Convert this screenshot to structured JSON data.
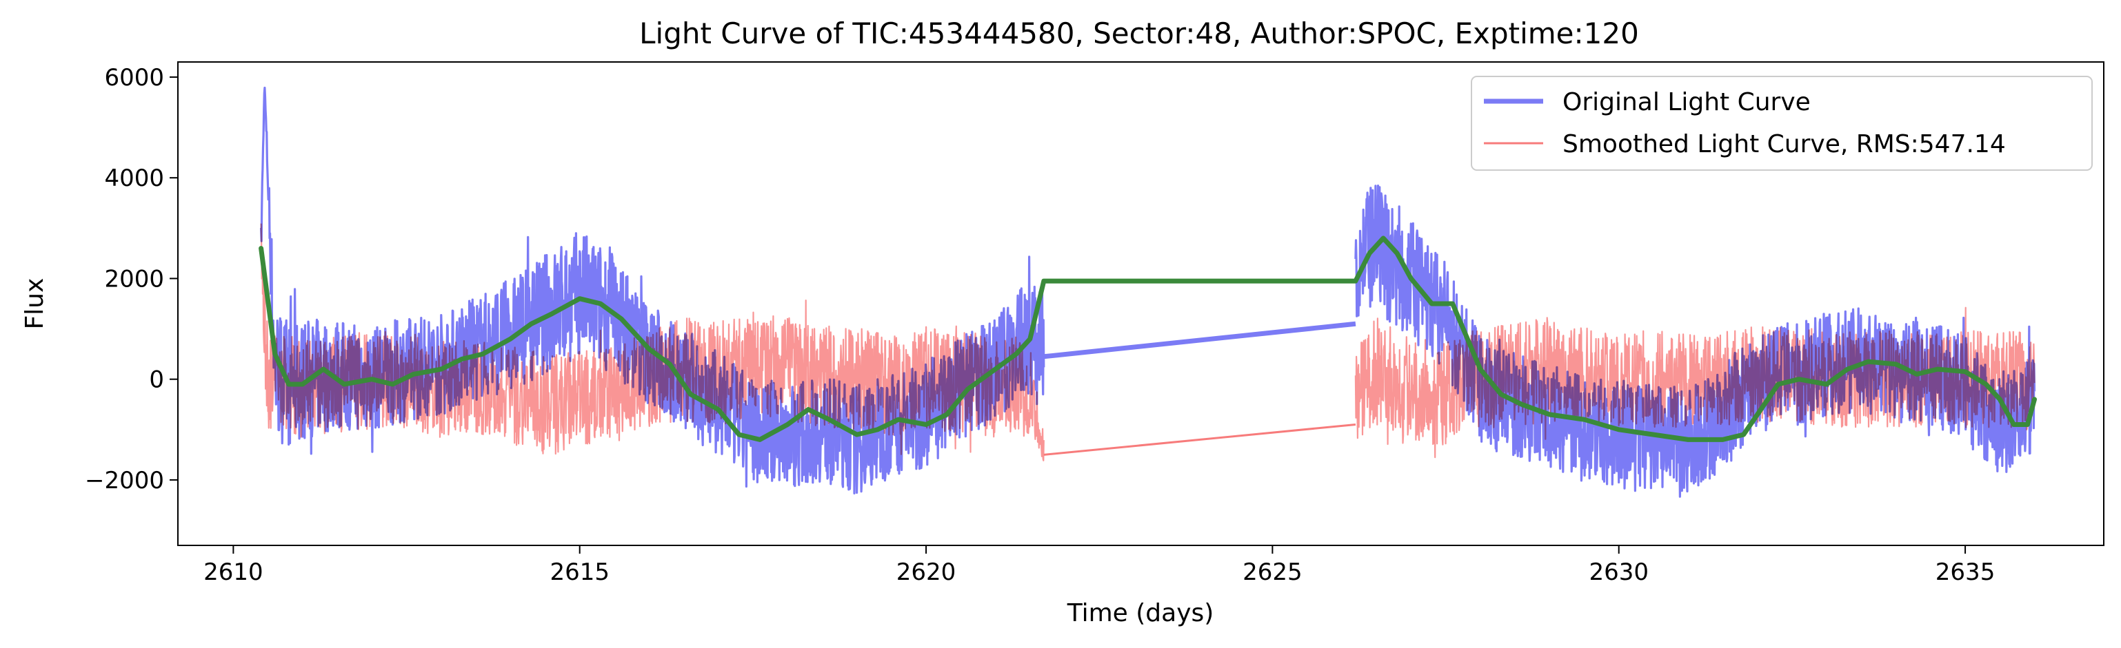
{
  "chart_data": {
    "type": "line",
    "title": "Light Curve of TIC:453444580, Sector:48, Author:SPOC, Exptime:120",
    "xlabel": "Time (days)",
    "ylabel": "Flux",
    "xlim": [
      2609.2,
      2637.0
    ],
    "ylim": [
      -3300,
      6300
    ],
    "xticks": [
      2610,
      2615,
      2620,
      2625,
      2630,
      2635
    ],
    "yticks": [
      -2000,
      0,
      2000,
      4000,
      6000
    ],
    "ytick_labels": [
      "−2000",
      "0",
      "2000",
      "4000",
      "6000"
    ],
    "grid": false,
    "legend_position": "top-right",
    "series": [
      {
        "name": "Original Light Curve",
        "color": "#7b7bf5",
        "style": "noisy-band",
        "segments": [
          {
            "x": [
              2610.4,
              2610.45,
              2610.6,
              2610.8,
              2611.0,
              2611.5,
              2612.0,
              2612.5,
              2613.0,
              2613.5,
              2614.0,
              2614.5,
              2615.0,
              2615.5,
              2616.0,
              2616.5,
              2617.0,
              2617.5,
              2618.0,
              2618.5,
              2619.0,
              2619.5,
              2620.0,
              2620.5,
              2621.0,
              2621.5,
              2621.7
            ],
            "center": [
              2600,
              5900,
              200,
              -100,
              0,
              100,
              0,
              200,
              300,
              600,
              900,
              1300,
              1700,
              1300,
              500,
              0,
              -500,
              -1000,
              -1100,
              -1000,
              -1200,
              -900,
              -700,
              -200,
              200,
              900,
              500
            ],
            "spread": [
              600,
              0,
              1700,
              1600,
              1500,
              1400,
              1300,
              1300,
              1300,
              1300,
              1400,
              1500,
              1600,
              1500,
              1300,
              1300,
              1300,
              1300,
              1300,
              1300,
              1400,
              1300,
              1300,
              1300,
              1300,
              1500,
              1500
            ]
          },
          {
            "x": [
              2626.2,
              2626.5,
              2627.0,
              2627.5,
              2628.0,
              2628.5,
              2629.0,
              2629.5,
              2630.0,
              2630.5,
              2631.0,
              2631.5,
              2632.0,
              2632.5,
              2633.0,
              2633.5,
              2634.0,
              2634.5,
              2635.0,
              2635.5,
              2636.0
            ],
            "center": [
              2400,
              2600,
              2000,
              1200,
              -200,
              -500,
              -700,
              -1000,
              -1100,
              -1200,
              -1200,
              -800,
              0,
              100,
              300,
              400,
              200,
              100,
              -200,
              -900,
              -400
            ],
            "spread": [
              1500,
              1600,
              1500,
              1400,
              1300,
              1300,
              1300,
              1300,
              1400,
              1400,
              1300,
              1300,
              1300,
              1300,
              1300,
              1300,
              1300,
              1300,
              1300,
              1300,
              1300
            ]
          }
        ],
        "gap_line": {
          "x": [
            2621.7,
            2626.2
          ],
          "y": [
            450,
            1100
          ]
        }
      },
      {
        "name": "Smoothed Light Curve, RMS:547.14",
        "color": "#f77b7b",
        "style": "noisy-band",
        "segments": [
          {
            "x": [
              2610.4,
              2610.5,
              2611.0,
              2611.5,
              2612.0,
              2612.5,
              2613.0,
              2613.5,
              2614.0,
              2614.5,
              2615.0,
              2615.5,
              2616.0,
              2616.5,
              2617.0,
              2617.5,
              2618.0,
              2618.5,
              2619.0,
              2619.5,
              2620.0,
              2620.5,
              2621.0,
              2621.5,
              2621.7
            ],
            "center": [
              2500,
              0,
              -200,
              -100,
              0,
              0,
              -200,
              -100,
              -300,
              -500,
              -400,
              -300,
              0,
              200,
              100,
              300,
              200,
              100,
              0,
              -100,
              0,
              0,
              -200,
              -100,
              -1400
            ],
            "spread": [
              800,
              1300,
              1200,
              1200,
              1200,
              1200,
              1200,
              1200,
              1200,
              1300,
              1200,
              1200,
              1200,
              1300,
              1300,
              1300,
              1300,
              1300,
              1300,
              1300,
              1300,
              1300,
              1200,
              1300,
              300
            ]
          },
          {
            "x": [
              2626.2,
              2626.5,
              2627.0,
              2627.5,
              2628.0,
              2628.5,
              2629.0,
              2629.5,
              2630.0,
              2630.5,
              2631.0,
              2631.5,
              2632.0,
              2632.5,
              2633.0,
              2633.5,
              2634.0,
              2634.5,
              2635.0,
              2635.5,
              2636.0
            ],
            "center": [
              -300,
              200,
              -200,
              -300,
              0,
              100,
              200,
              100,
              0,
              0,
              0,
              0,
              100,
              100,
              0,
              0,
              0,
              0,
              0,
              0,
              0
            ],
            "spread": [
              1200,
              1300,
              1300,
              1300,
              1300,
              1300,
              1300,
              1200,
              1200,
              1200,
              1200,
              1200,
              1200,
              1200,
              1200,
              1200,
              1200,
              1200,
              1200,
              1200,
              1300
            ]
          }
        ],
        "gap_line": {
          "x": [
            2621.7,
            2626.2
          ],
          "y": [
            -1500,
            -900
          ]
        }
      },
      {
        "color": "#3a8a3a",
        "style": "line",
        "x": [
          2610.4,
          2610.6,
          2610.8,
          2611.0,
          2611.3,
          2611.6,
          2612.0,
          2612.3,
          2612.6,
          2613.0,
          2613.3,
          2613.6,
          2614.0,
          2614.3,
          2614.6,
          2615.0,
          2615.3,
          2615.6,
          2616.0,
          2616.3,
          2616.6,
          2617.0,
          2617.3,
          2617.6,
          2618.0,
          2618.3,
          2618.6,
          2619.0,
          2619.3,
          2619.6,
          2620.0,
          2620.3,
          2620.6,
          2621.0,
          2621.3,
          2621.5,
          2621.7,
          2626.2,
          2626.4,
          2626.6,
          2626.8,
          2627.0,
          2627.3,
          2627.6,
          2628.0,
          2628.3,
          2628.6,
          2629.0,
          2629.5,
          2630.0,
          2630.5,
          2631.0,
          2631.5,
          2631.8,
          2632.0,
          2632.3,
          2632.6,
          2633.0,
          2633.3,
          2633.6,
          2634.0,
          2634.3,
          2634.6,
          2635.0,
          2635.3,
          2635.5,
          2635.7,
          2635.9,
          2636.0
        ],
        "y": [
          2600,
          500,
          -100,
          -100,
          200,
          -100,
          0,
          -100,
          100,
          200,
          400,
          500,
          800,
          1100,
          1300,
          1600,
          1500,
          1200,
          600,
          300,
          -300,
          -600,
          -1100,
          -1200,
          -900,
          -600,
          -800,
          -1100,
          -1000,
          -800,
          -900,
          -700,
          -200,
          200,
          500,
          800,
          1950,
          1950,
          2500,
          2800,
          2500,
          2000,
          1500,
          1500,
          200,
          -300,
          -500,
          -700,
          -800,
          -1000,
          -1100,
          -1200,
          -1200,
          -1100,
          -700,
          -100,
          0,
          -100,
          200,
          350,
          300,
          100,
          200,
          150,
          -100,
          -400,
          -900,
          -900,
          -400
        ]
      }
    ]
  }
}
